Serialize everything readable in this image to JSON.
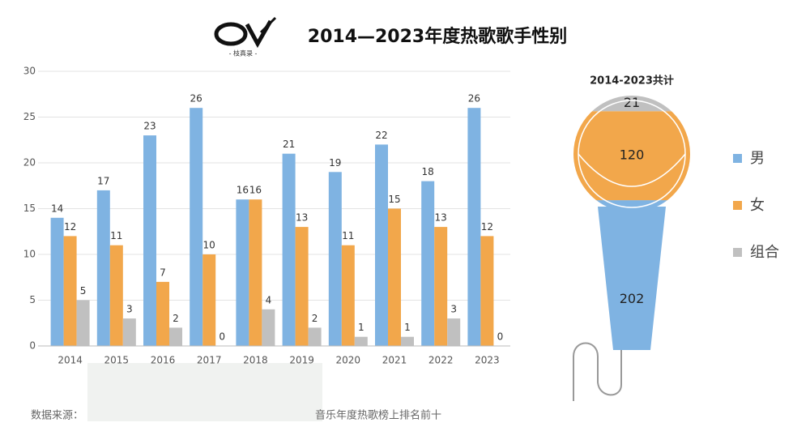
{
  "chart_data": [
    {
      "type": "bar",
      "title": "2014—2023年度热歌歌手性别",
      "logo_text": "- 枝真录 -",
      "source": [
        "数据来源：",
        "音乐年度热歌榜上排名前十"
      ],
      "categories": [
        "2014",
        "2015",
        "2016",
        "2017",
        "2018",
        "2019",
        "2020",
        "2021",
        "2022",
        "2023"
      ],
      "series": [
        {
          "color": "#7fb3e2",
          "values": [
            14,
            17,
            23,
            26,
            16,
            21,
            19,
            22,
            18,
            26
          ]
        },
        {
          "color": "#f2a74b",
          "values": [
            12,
            11,
            7,
            10,
            16,
            13,
            11,
            15,
            13,
            12
          ]
        },
        {
          "color": "#c0c0c0",
          "values": [
            5,
            3,
            2,
            0,
            4,
            2,
            1,
            1,
            3,
            0
          ]
        }
      ],
      "ylim": [
        0,
        30
      ],
      "yticks": [
        0,
        5,
        10,
        15,
        20,
        25,
        30
      ],
      "grid": true
    },
    {
      "type": "pictorial-stack",
      "title": "2014-2023共计",
      "categories": [
        "男",
        "女",
        "组合"
      ],
      "values": [
        202,
        120,
        21
      ],
      "colors": [
        "#7fb3e2",
        "#f2a74b",
        "#c0c0c0"
      ]
    }
  ]
}
